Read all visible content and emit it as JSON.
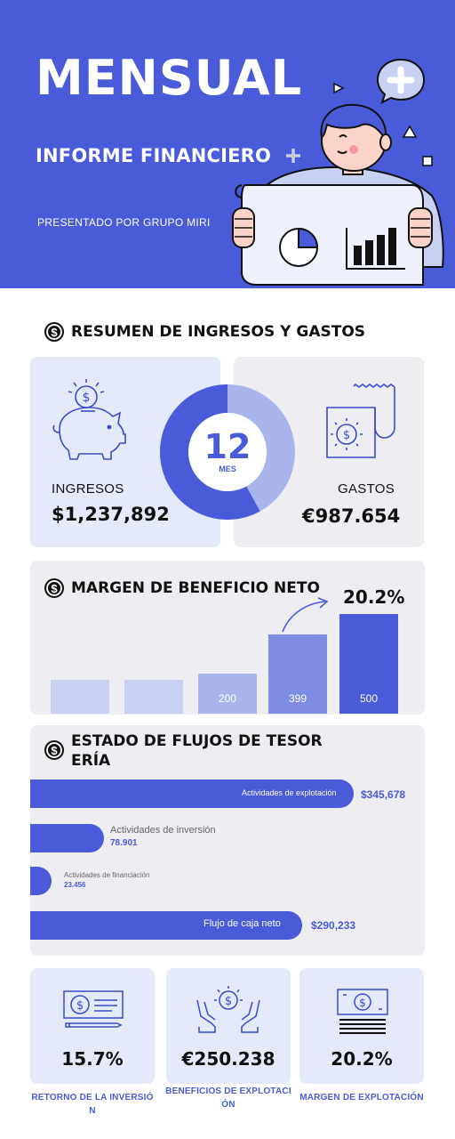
{
  "header": {
    "title": "MENSUAL",
    "subtitle": "INFORME FINANCIERO",
    "presenter": "PRESENTADO POR GRUPO MIRI"
  },
  "summary": {
    "title": "RESUMEN DE INGRESOS Y GASTOS",
    "income_label": "INGRESOS",
    "income_value": "$1,237,892",
    "expense_label": "GASTOS",
    "expense_value": "€987.654",
    "month_number": "12",
    "month_label": "MES",
    "donut_share": 0.58
  },
  "margin": {
    "title": "MARGEN DE BENEFICIO NETO",
    "percent": "20.2%",
    "bars": [
      {
        "label": "",
        "value": 60
      },
      {
        "label": "",
        "value": 60
      },
      {
        "label": "200",
        "value": 200
      },
      {
        "label": "399",
        "value": 399
      },
      {
        "label": "500",
        "value": 500
      }
    ]
  },
  "cashflow": {
    "title_line1": "ESTADO DE FLUJOS DE TESOR",
    "title_line2": "ERÍA",
    "items": [
      {
        "label": "Actividades de explotación",
        "value": "$345,678"
      },
      {
        "label": "Actividades de inversión",
        "value": "78.901"
      },
      {
        "label": "Actividades de financiación",
        "value": "23.456"
      },
      {
        "label": "Flujo de caja neto",
        "value": "$290,233"
      }
    ]
  },
  "kpis": [
    {
      "value": "15.7%",
      "caption_line1": "RETORNO DE LA INVERSIÓ",
      "caption_line2": "N"
    },
    {
      "value": "€250.238",
      "caption_line1": "BENEFICIOS DE EXPLOTACI",
      "caption_line2": "ÓN"
    },
    {
      "value": "20.2%",
      "caption_line1": "MARGEN DE EXPLOTACIÓN",
      "caption_line2": ""
    }
  ],
  "colors": {
    "primary": "#4a5bd9",
    "light_bar": "#c9d1f2",
    "mid_bar": "#8c9ae6",
    "card_blue": "#e4eaf9",
    "card_gray": "#ededf2"
  }
}
